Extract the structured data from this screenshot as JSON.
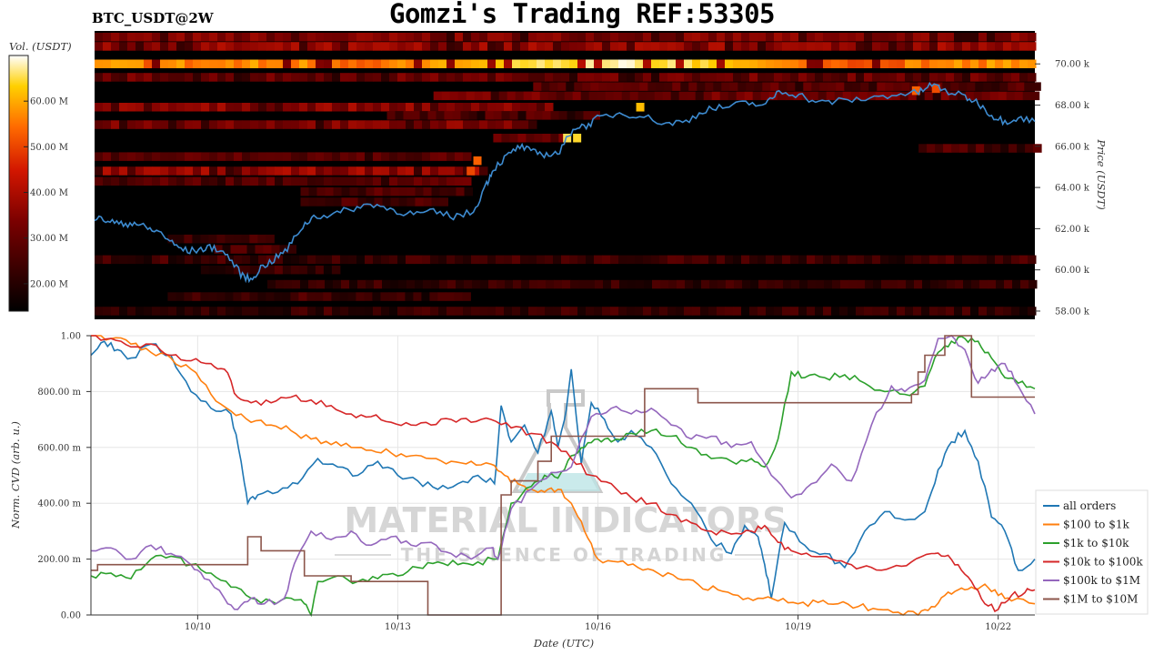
{
  "header": {
    "title": "Gomzi's Trading REF:53305",
    "symbol": "BTC_USDT@2W"
  },
  "watermark": {
    "brand": "MATERIAL INDICATORS",
    "tagline": "THE SCIENCE OF TRADING"
  },
  "colorbar": {
    "label": "Vol. (USDT)",
    "ticks": [
      "20.00 M",
      "30.00 M",
      "40.00 M",
      "50.00 M",
      "60.00 M"
    ],
    "tick_values": [
      20,
      30,
      40,
      50,
      60
    ],
    "range": [
      14,
      70
    ]
  },
  "chart_data": [
    {
      "type": "heatmap",
      "ylabel": "Price (USDT)",
      "ylim": [
        57.6,
        71.6
      ],
      "yticks": [
        58,
        60,
        62,
        64,
        66,
        68,
        70
      ],
      "ytick_labels": [
        "58.00 k",
        "60.00 k",
        "62.00 k",
        "64.00 k",
        "66.00 k",
        "68.00 k",
        "70.00 k"
      ],
      "xlim": [
        8.4,
        22.55
      ],
      "overlay_price": {
        "x": [
          8.4,
          8.6,
          8.8,
          9.0,
          9.2,
          9.4,
          9.6,
          9.8,
          10.0,
          10.2,
          10.4,
          10.6,
          10.75,
          10.9,
          11.1,
          11.3,
          11.5,
          11.7,
          12.0,
          12.3,
          12.6,
          12.9,
          13.2,
          13.5,
          13.8,
          14.1,
          14.3,
          14.4,
          14.6,
          14.8,
          15.0,
          15.2,
          15.4,
          15.6,
          15.8,
          16.0,
          16.3,
          16.6,
          17.0,
          17.3,
          17.6,
          17.9,
          18.2,
          18.5,
          18.7,
          19.0,
          19.3,
          19.6,
          20.0,
          20.4,
          20.8,
          21.0,
          21.2,
          21.5,
          21.7,
          21.9,
          22.1,
          22.3,
          22.55
        ],
        "y": [
          62.5,
          62.4,
          62.2,
          62.3,
          62.0,
          61.8,
          61.2,
          60.9,
          61.0,
          61.1,
          60.7,
          59.8,
          59.5,
          60.1,
          60.5,
          61.0,
          62.0,
          62.6,
          62.7,
          63.0,
          63.2,
          62.9,
          62.7,
          62.8,
          62.6,
          62.8,
          64.2,
          64.9,
          65.5,
          66.0,
          65.7,
          65.6,
          65.7,
          66.9,
          67.0,
          67.4,
          67.6,
          67.5,
          67.1,
          67.2,
          67.8,
          67.9,
          68.1,
          68.0,
          68.7,
          68.5,
          68.1,
          68.2,
          68.3,
          68.5,
          68.6,
          69.0,
          68.7,
          68.4,
          68.1,
          67.5,
          67.2,
          67.4,
          67.2
        ],
        "color": "#3d8bd0"
      }
    },
    {
      "type": "line",
      "xlabel": "Date (UTC)",
      "ylabel": "Norm. CVD (arb. u.)",
      "ylim": [
        0,
        1
      ],
      "xlim": [
        8.4,
        22.55
      ],
      "xticks": [
        10,
        13,
        16,
        19,
        22
      ],
      "xtick_labels": [
        "10/10",
        "10/13",
        "10/16",
        "10/19",
        "10/22"
      ],
      "yticks": [
        0,
        0.2,
        0.4,
        0.6,
        0.8,
        1.0
      ],
      "ytick_labels": [
        "0.00",
        "200.00 m",
        "400.00 m",
        "600.00 m",
        "800.00 m",
        "1.00"
      ],
      "legend_position": "lower-right",
      "series": [
        {
          "name": "all orders",
          "color": "#1f77b4",
          "x": [
            8.4,
            8.6,
            8.8,
            9.0,
            9.3,
            9.6,
            9.9,
            10.2,
            10.5,
            10.65,
            10.75,
            10.9,
            11.2,
            11.5,
            11.8,
            12.1,
            12.4,
            12.7,
            13.0,
            13.3,
            13.6,
            13.9,
            14.2,
            14.45,
            14.55,
            14.7,
            14.9,
            15.1,
            15.3,
            15.4,
            15.5,
            15.6,
            15.75,
            15.9,
            16.1,
            16.3,
            16.5,
            16.8,
            17.1,
            17.4,
            17.7,
            18.0,
            18.2,
            18.4,
            18.5,
            18.6,
            18.8,
            19.1,
            19.4,
            19.7,
            20.0,
            20.3,
            20.6,
            20.9,
            21.1,
            21.3,
            21.5,
            21.7,
            21.9,
            22.1,
            22.3,
            22.55
          ],
          "y": [
            0.93,
            0.98,
            0.95,
            0.92,
            0.97,
            0.93,
            0.8,
            0.74,
            0.72,
            0.55,
            0.4,
            0.43,
            0.44,
            0.47,
            0.56,
            0.53,
            0.5,
            0.55,
            0.5,
            0.48,
            0.45,
            0.47,
            0.5,
            0.47,
            0.75,
            0.62,
            0.68,
            0.58,
            0.73,
            0.6,
            0.7,
            0.88,
            0.54,
            0.76,
            0.7,
            0.62,
            0.66,
            0.6,
            0.47,
            0.4,
            0.27,
            0.22,
            0.32,
            0.28,
            0.18,
            0.06,
            0.33,
            0.25,
            0.22,
            0.17,
            0.3,
            0.37,
            0.34,
            0.37,
            0.52,
            0.62,
            0.66,
            0.55,
            0.35,
            0.3,
            0.16,
            0.2
          ]
        },
        {
          "name": "$100 to $1k",
          "color": "#ff7f0e",
          "x": [
            8.4,
            8.7,
            9.0,
            9.3,
            9.6,
            9.9,
            10.2,
            10.5,
            10.8,
            11.1,
            11.4,
            11.7,
            12.0,
            12.3,
            12.6,
            12.9,
            13.2,
            13.5,
            13.8,
            14.1,
            14.4,
            14.6,
            14.8,
            15.0,
            15.2,
            15.4,
            15.6,
            15.8,
            16.0,
            16.3,
            16.6,
            16.9,
            17.2,
            17.5,
            17.8,
            18.1,
            18.4,
            18.7,
            19.0,
            19.3,
            19.6,
            19.9,
            20.2,
            20.5,
            20.8,
            21.0,
            21.2,
            21.4,
            21.6,
            21.8,
            22.0,
            22.2,
            22.55
          ],
          "y": [
            1.0,
            0.99,
            0.97,
            0.94,
            0.92,
            0.88,
            0.79,
            0.73,
            0.69,
            0.68,
            0.66,
            0.63,
            0.61,
            0.6,
            0.59,
            0.58,
            0.57,
            0.56,
            0.55,
            0.55,
            0.54,
            0.5,
            0.47,
            0.45,
            0.44,
            0.45,
            0.4,
            0.3,
            0.2,
            0.19,
            0.17,
            0.15,
            0.13,
            0.11,
            0.09,
            0.07,
            0.06,
            0.05,
            0.04,
            0.045,
            0.04,
            0.03,
            0.02,
            0.01,
            0.0,
            0.03,
            0.07,
            0.09,
            0.1,
            0.11,
            0.07,
            0.05,
            0.04
          ]
        },
        {
          "name": "$1k to $10k",
          "color": "#2ca02c",
          "x": [
            8.4,
            8.7,
            9.0,
            9.3,
            9.6,
            9.9,
            10.2,
            10.5,
            10.8,
            11.1,
            11.4,
            11.6,
            11.7,
            11.8,
            12.1,
            12.4,
            12.7,
            13.0,
            13.3,
            13.6,
            13.9,
            14.2,
            14.5,
            14.7,
            15.0,
            15.2,
            15.4,
            15.6,
            15.8,
            16.0,
            16.2,
            16.5,
            16.8,
            17.1,
            17.4,
            17.7,
            18.0,
            18.3,
            18.5,
            18.7,
            18.9,
            19.1,
            19.4,
            19.7,
            20.0,
            20.3,
            20.6,
            20.9,
            21.1,
            21.3,
            21.5,
            21.7,
            21.9,
            22.1,
            22.3,
            22.55
          ],
          "y": [
            0.14,
            0.15,
            0.13,
            0.2,
            0.21,
            0.18,
            0.15,
            0.1,
            0.06,
            0.05,
            0.06,
            0.04,
            0.0,
            0.12,
            0.14,
            0.12,
            0.13,
            0.14,
            0.17,
            0.19,
            0.18,
            0.19,
            0.2,
            0.4,
            0.46,
            0.5,
            0.49,
            0.57,
            0.6,
            0.63,
            0.62,
            0.65,
            0.66,
            0.64,
            0.6,
            0.56,
            0.55,
            0.56,
            0.53,
            0.63,
            0.87,
            0.85,
            0.85,
            0.86,
            0.83,
            0.8,
            0.79,
            0.82,
            0.94,
            0.98,
            0.99,
            0.98,
            0.92,
            0.85,
            0.83,
            0.81
          ]
        },
        {
          "name": "$10k to $100k",
          "color": "#d62728",
          "x": [
            8.4,
            8.7,
            9.0,
            9.3,
            9.6,
            9.9,
            10.2,
            10.4,
            10.6,
            10.8,
            11.1,
            11.4,
            11.7,
            12.0,
            12.3,
            12.6,
            12.9,
            13.2,
            13.5,
            13.8,
            14.1,
            14.4,
            14.7,
            15.0,
            15.3,
            15.6,
            15.9,
            16.2,
            16.5,
            16.8,
            17.1,
            17.4,
            17.7,
            18.0,
            18.3,
            18.5,
            18.7,
            18.9,
            19.2,
            19.5,
            19.8,
            20.1,
            20.4,
            20.7,
            21.0,
            21.2,
            21.4,
            21.6,
            21.8,
            22.0,
            22.2,
            22.4,
            22.55
          ],
          "y": [
            1.0,
            0.99,
            0.96,
            0.97,
            0.93,
            0.91,
            0.9,
            0.88,
            0.78,
            0.76,
            0.76,
            0.78,
            0.77,
            0.75,
            0.72,
            0.71,
            0.69,
            0.68,
            0.68,
            0.7,
            0.69,
            0.7,
            0.67,
            0.65,
            0.62,
            0.56,
            0.5,
            0.47,
            0.42,
            0.4,
            0.36,
            0.33,
            0.3,
            0.29,
            0.3,
            0.32,
            0.26,
            0.23,
            0.21,
            0.2,
            0.18,
            0.17,
            0.17,
            0.19,
            0.22,
            0.21,
            0.18,
            0.12,
            0.04,
            0.02,
            0.07,
            0.08,
            0.09
          ]
        },
        {
          "name": "$100k to $1M",
          "color": "#9467bd",
          "x": [
            8.4,
            8.7,
            9.0,
            9.3,
            9.6,
            9.9,
            10.1,
            10.4,
            10.6,
            10.8,
            11.0,
            11.3,
            11.5,
            11.7,
            12.0,
            12.3,
            12.6,
            12.9,
            13.2,
            13.5,
            13.8,
            14.1,
            14.4,
            14.5,
            14.7,
            15.0,
            15.3,
            15.6,
            15.9,
            16.2,
            16.5,
            16.8,
            17.1,
            17.4,
            17.7,
            18.0,
            18.3,
            18.6,
            18.9,
            19.2,
            19.5,
            19.8,
            20.1,
            20.4,
            20.6,
            20.9,
            21.1,
            21.3,
            21.5,
            21.7,
            21.9,
            22.1,
            22.3,
            22.55
          ],
          "y": [
            0.23,
            0.24,
            0.2,
            0.25,
            0.22,
            0.18,
            0.13,
            0.06,
            0.02,
            0.06,
            0.04,
            0.06,
            0.21,
            0.3,
            0.27,
            0.3,
            0.25,
            0.28,
            0.25,
            0.26,
            0.22,
            0.2,
            0.24,
            0.2,
            0.38,
            0.45,
            0.51,
            0.53,
            0.71,
            0.74,
            0.72,
            0.74,
            0.68,
            0.63,
            0.64,
            0.6,
            0.62,
            0.5,
            0.42,
            0.47,
            0.54,
            0.48,
            0.68,
            0.82,
            0.8,
            0.84,
            0.99,
            1.0,
            0.95,
            0.83,
            0.88,
            0.9,
            0.82,
            0.72
          ]
        },
        {
          "name": "$1M to $10M",
          "color": "#8c564b",
          "step": true,
          "x": [
            8.4,
            8.5,
            10.6,
            10.75,
            10.95,
            11.3,
            11.6,
            12.05,
            12.3,
            12.4,
            13.4,
            13.45,
            14.5,
            14.55,
            14.7,
            15.1,
            15.3,
            15.7,
            16.7,
            17.3,
            17.5,
            18.6,
            19.0,
            20.0,
            20.3,
            20.7,
            20.8,
            20.9,
            21.2,
            21.4,
            21.6,
            22.0,
            22.3,
            22.55
          ],
          "y": [
            0.16,
            0.18,
            0.18,
            0.28,
            0.23,
            0.23,
            0.14,
            0.14,
            0.12,
            0.12,
            0.12,
            0.0,
            0.0,
            0.43,
            0.48,
            0.55,
            0.64,
            0.64,
            0.81,
            0.81,
            0.76,
            0.76,
            0.76,
            0.76,
            0.76,
            0.79,
            0.87,
            0.93,
            1.0,
            1.0,
            0.78,
            0.78,
            0.78,
            0.78
          ]
        }
      ]
    }
  ]
}
